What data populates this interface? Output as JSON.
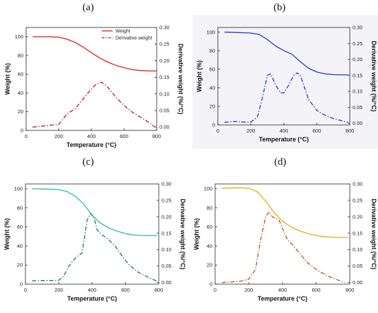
{
  "chart_data": [
    {
      "type": "line",
      "panel_label": "(a)",
      "xlabel": "Temperature (°C)",
      "ylabel": "Weight (%)",
      "ylabel_right": "Derivative weight (%/°C)",
      "xlim": [
        0,
        800
      ],
      "ylim": [
        0,
        110
      ],
      "ylim_right": [
        -0.01,
        0.3
      ],
      "xticks": [
        "0",
        "200",
        "400",
        "600",
        "800"
      ],
      "yticks": [
        "0",
        "20",
        "40",
        "60",
        "80",
        "100"
      ],
      "yticks_right": [
        "0.00",
        "0.05",
        "0.10",
        "0.15",
        "0.20",
        "0.25",
        "0.30"
      ],
      "legend": {
        "position": "top-right",
        "entries": [
          "Weight",
          "Derivative weight"
        ]
      },
      "grid": false,
      "background": "#ffffff",
      "weight_color": "#e31a1c",
      "derivative_color": "#c0141c",
      "series": [
        {
          "name": "Weight",
          "axis": "left",
          "style": "solid",
          "x": [
            40,
            100,
            150,
            200,
            250,
            300,
            350,
            400,
            450,
            500,
            550,
            600,
            650,
            700,
            750,
            800
          ],
          "values": [
            100,
            100,
            100,
            99.6,
            97.5,
            94,
            89,
            83,
            77.5,
            73,
            69.5,
            67,
            65,
            64,
            63.6,
            63.5
          ]
        },
        {
          "name": "Derivative weight",
          "axis": "right",
          "style": "dashdot",
          "x": [
            40,
            100,
            150,
            200,
            220,
            250,
            300,
            350,
            400,
            430,
            460,
            480,
            500,
            550,
            600,
            650,
            700,
            750,
            790
          ],
          "values": [
            0.0,
            0.003,
            0.006,
            0.008,
            0.02,
            0.04,
            0.055,
            0.085,
            0.115,
            0.13,
            0.135,
            0.13,
            0.12,
            0.09,
            0.065,
            0.045,
            0.03,
            0.015,
            0.0
          ]
        }
      ]
    },
    {
      "type": "line",
      "panel_label": "(b)",
      "xlabel": "Temperature (°C)",
      "ylabel": "Weight (%)",
      "ylabel_right": "Derivative weight (%/°C)",
      "xlim": [
        0,
        800
      ],
      "ylim": [
        0,
        105
      ],
      "ylim_right": [
        -0.005,
        0.3
      ],
      "xticks": [
        "0",
        "200",
        "400",
        "600",
        "800"
      ],
      "yticks": [
        "0",
        "20",
        "40",
        "60",
        "80",
        "100"
      ],
      "yticks_right": [
        "0.00",
        "0.05",
        "0.10",
        "0.15",
        "0.20",
        "0.25",
        "0.30"
      ],
      "grid": false,
      "background": "#f3f3f8",
      "weight_color": "#2233cc",
      "derivative_color": "#2233cc",
      "series": [
        {
          "axis": "left",
          "style": "solid",
          "x": [
            40,
            100,
            150,
            200,
            250,
            300,
            350,
            400,
            450,
            500,
            550,
            600,
            650,
            700,
            750,
            790
          ],
          "values": [
            100,
            99.7,
            99.4,
            99,
            97.5,
            92,
            85,
            80,
            76,
            68,
            61,
            57,
            55,
            54.3,
            54,
            54
          ]
        },
        {
          "axis": "right",
          "style": "dashdot",
          "x": [
            40,
            100,
            150,
            200,
            240,
            270,
            300,
            320,
            350,
            380,
            400,
            430,
            460,
            480,
            500,
            520,
            550,
            600,
            650,
            700,
            750,
            790
          ],
          "values": [
            0.003,
            0.006,
            0.004,
            0.004,
            0.02,
            0.08,
            0.15,
            0.155,
            0.12,
            0.095,
            0.095,
            0.12,
            0.15,
            0.158,
            0.15,
            0.12,
            0.075,
            0.04,
            0.025,
            0.015,
            0.008,
            0.003
          ]
        }
      ]
    },
    {
      "type": "line",
      "panel_label": "(c)",
      "xlabel": "Temperature (°C)",
      "ylabel": "Weight (%)",
      "ylabel_right": "Derivative weight (%/°C)",
      "xlim": [
        0,
        800
      ],
      "ylim": [
        0,
        105
      ],
      "ylim_right": [
        -0.005,
        0.3
      ],
      "xticks": [
        "0",
        "200",
        "400",
        "600",
        "800"
      ],
      "yticks": [
        "0",
        "20",
        "40",
        "60",
        "80",
        "100"
      ],
      "yticks_right": [
        "0.00",
        "0.05",
        "0.10",
        "0.15",
        "0.20",
        "0.25",
        "0.30"
      ],
      "grid": false,
      "background": "#ffffff",
      "weight_color": "#20c0a8",
      "derivative_color": "#0f7a4c",
      "series": [
        {
          "axis": "left",
          "style": "solid",
          "x": [
            40,
            100,
            150,
            200,
            250,
            300,
            350,
            400,
            450,
            500,
            550,
            600,
            650,
            700,
            750,
            790
          ],
          "values": [
            100,
            99.8,
            99.5,
            99,
            97,
            92,
            84,
            72,
            64,
            59,
            55.5,
            53,
            51.5,
            51,
            50.8,
            50.8
          ]
        },
        {
          "axis": "right",
          "style": "dashdot",
          "x": [
            40,
            100,
            150,
            200,
            230,
            260,
            300,
            340,
            370,
            390,
            410,
            430,
            460,
            500,
            540,
            580,
            620,
            680,
            740,
            790
          ],
          "values": [
            0.005,
            0.006,
            0.006,
            0.007,
            0.02,
            0.05,
            0.075,
            0.09,
            0.19,
            0.21,
            0.2,
            0.16,
            0.145,
            0.13,
            0.11,
            0.08,
            0.055,
            0.03,
            0.015,
            0.004
          ]
        }
      ]
    },
    {
      "type": "line",
      "panel_label": "(d)",
      "xlabel": "Temperature (°C)",
      "ylabel": "Weight (%)",
      "ylabel_right": "Derivative weight (%/°C)",
      "xlim": [
        0,
        800
      ],
      "ylim": [
        0,
        105
      ],
      "ylim_right": [
        -0.005,
        0.3
      ],
      "xticks": [
        "0",
        "200",
        "400",
        "600",
        "800"
      ],
      "yticks": [
        "0",
        "20",
        "40",
        "60",
        "80",
        "100"
      ],
      "yticks_right": [
        "0.00",
        "0.05",
        "0.10",
        "0.15",
        "0.20",
        "0.25",
        "0.30"
      ],
      "grid": false,
      "background": "#ffffff",
      "weight_color": "#f2a516",
      "derivative_color": "#b8501a",
      "series": [
        {
          "axis": "left",
          "style": "solid",
          "x": [
            40,
            100,
            150,
            200,
            250,
            300,
            350,
            400,
            450,
            500,
            550,
            600,
            650,
            700,
            750,
            790
          ],
          "values": [
            100.5,
            100.8,
            101,
            100.5,
            97,
            87,
            75,
            66,
            60,
            56,
            53,
            51,
            49.8,
            49.2,
            49,
            49
          ]
        },
        {
          "axis": "right",
          "style": "dashdot",
          "x": [
            40,
            100,
            150,
            200,
            240,
            270,
            300,
            320,
            340,
            360,
            380,
            400,
            430,
            460,
            500,
            550,
            600,
            650,
            700,
            750,
            770
          ],
          "values": [
            0.0,
            0.002,
            0.004,
            0.01,
            0.04,
            0.13,
            0.2,
            0.215,
            0.2,
            0.195,
            0.19,
            0.165,
            0.13,
            0.115,
            0.09,
            0.06,
            0.04,
            0.025,
            0.013,
            0.004,
            0.0
          ]
        }
      ]
    }
  ]
}
